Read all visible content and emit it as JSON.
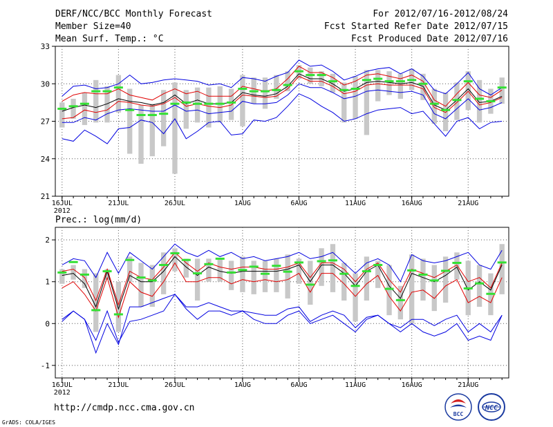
{
  "header": {
    "title": "DERF/NCC/BCC Monthly Forecast",
    "member_size": "Member Size=40",
    "variable_label": "Mean Surf. Temp.: °C",
    "forecast_period": "For 2012/07/16-2012/08/24",
    "start_date": "Fcst Started Refer Date 2012/07/15",
    "produced_date": "Fcst Produced Date 2012/07/16"
  },
  "footer": {
    "url": "http://cmdp.ncc.cma.gov.cn",
    "grads_credit": "GrADS: COLA/IGES",
    "logo_bcc": "BCC",
    "logo_ncc": "NCC"
  },
  "colors": {
    "ensemble_bound": "#0000e0",
    "spread_band": "#e00000",
    "ensemble_mean": "#000000",
    "member_bar": "#c8c8c8",
    "median_mark": "#33e033",
    "logo_red": "#d42020",
    "logo_blue": "#1a3aa0"
  },
  "chart_data": [
    {
      "type": "line",
      "subtitle": "Mean Surf. Temp.: °C",
      "x_ticks": [
        {
          "day": 0,
          "label": "16JUL",
          "sub": "2012"
        },
        {
          "day": 5,
          "label": "21JUL",
          "sub": ""
        },
        {
          "day": 10,
          "label": "26JUL",
          "sub": ""
        },
        {
          "day": 16,
          "label": "1AUG",
          "sub": ""
        },
        {
          "day": 21,
          "label": "6AUG",
          "sub": ""
        },
        {
          "day": 26,
          "label": "11AUG",
          "sub": ""
        },
        {
          "day": 31,
          "label": "16AUG",
          "sub": ""
        },
        {
          "day": 36,
          "label": "21AUG",
          "sub": ""
        }
      ],
      "xlim": [
        -0.6,
        39.6
      ],
      "ylim": [
        21,
        33
      ],
      "y_ticks": [
        21,
        24,
        27,
        30,
        33
      ],
      "x_grid_days": [
        0,
        5,
        10,
        16,
        21,
        26,
        31,
        36
      ],
      "series": [
        {
          "name": "max",
          "color": "#0000e0",
          "values": [
            25.6,
            25.4,
            26.3,
            25.8,
            25.2,
            26.4,
            26.5,
            27.1,
            26.9,
            26.0,
            27.2,
            25.6,
            26.2,
            26.9,
            27.0,
            25.9,
            26.0,
            27.1,
            27.0,
            27.3,
            28.2,
            29.2,
            28.8,
            28.2,
            27.7,
            27.0,
            27.2,
            27.6,
            27.9,
            28.0,
            28.1,
            27.6,
            27.8,
            26.8,
            25.8,
            27.0,
            27.3,
            26.4,
            26.9,
            27.0
          ]
        },
        {
          "name": "upper",
          "color": "#e00000",
          "values": [
            28.6,
            29.1,
            29.3,
            29.2,
            29.2,
            29.6,
            29.1,
            28.9,
            28.7,
            29.2,
            29.6,
            29.2,
            29.4,
            29.0,
            29.0,
            29.0,
            29.8,
            29.6,
            29.4,
            29.6,
            30.4,
            31.4,
            30.9,
            30.9,
            30.5,
            29.9,
            30.2,
            30.7,
            30.8,
            30.6,
            30.4,
            30.7,
            30.2,
            28.7,
            28.2,
            29.2,
            30.1,
            29.1,
            28.9,
            29.5
          ]
        },
        {
          "name": "mean",
          "color": "#000000",
          "values": [
            27.8,
            28.1,
            28.3,
            28.1,
            28.4,
            28.8,
            28.6,
            28.5,
            28.3,
            28.5,
            29.1,
            28.4,
            28.7,
            28.4,
            28.4,
            28.5,
            29.3,
            29.1,
            29.0,
            29.2,
            29.8,
            30.8,
            30.4,
            30.4,
            30.0,
            29.4,
            29.6,
            30.1,
            30.2,
            30.1,
            30.0,
            30.1,
            29.8,
            28.3,
            27.9,
            28.7,
            29.6,
            28.5,
            28.6,
            29.0
          ]
        },
        {
          "name": "lower",
          "color": "#e00000",
          "values": [
            27.2,
            27.3,
            27.9,
            27.7,
            27.9,
            28.6,
            28.5,
            28.3,
            28.2,
            28.4,
            28.9,
            28.2,
            28.4,
            28.2,
            28.1,
            28.3,
            29.1,
            29.0,
            28.9,
            29.0,
            29.6,
            30.6,
            30.2,
            30.2,
            29.8,
            29.2,
            29.4,
            29.9,
            30.0,
            29.9,
            29.9,
            29.9,
            29.6,
            28.1,
            27.7,
            28.5,
            29.4,
            28.3,
            28.5,
            28.9
          ]
        },
        {
          "name": "lowest",
          "color": "#0000e0",
          "values": [
            26.9,
            26.9,
            27.3,
            27.1,
            27.6,
            27.9,
            28.0,
            27.9,
            27.8,
            27.8,
            28.3,
            27.8,
            27.9,
            27.6,
            27.7,
            27.8,
            28.6,
            28.4,
            28.4,
            28.5,
            29.1,
            30.0,
            29.7,
            29.7,
            29.3,
            28.8,
            29.0,
            29.4,
            29.5,
            29.4,
            29.3,
            29.4,
            29.1,
            27.6,
            27.2,
            28.0,
            28.8,
            27.9,
            28.1,
            28.5
          ]
        },
        {
          "name": "min",
          "color": "#0000e0",
          "values": [
            29.0,
            29.8,
            29.9,
            29.6,
            29.7,
            30.0,
            30.7,
            30.0,
            30.1,
            30.3,
            30.4,
            30.3,
            30.2,
            29.9,
            30.0,
            29.7,
            30.5,
            30.4,
            30.2,
            30.6,
            30.9,
            31.9,
            31.4,
            31.5,
            31.0,
            30.3,
            30.6,
            31.0,
            31.2,
            31.3,
            30.8,
            31.2,
            30.6,
            29.5,
            29.2,
            30.0,
            30.9,
            29.6,
            29.1,
            29.7
          ]
        }
      ],
      "bars": {
        "low": [
          26.5,
          27.2,
          26.7,
          26.9,
          26.9,
          27.7,
          24.4,
          23.6,
          24.2,
          25.0,
          22.8,
          26.4,
          26.9,
          26.5,
          26.9,
          27.1,
          26.6,
          28.4,
          28.0,
          28.8,
          29.4,
          30.4,
          30.0,
          29.8,
          29.3,
          26.9,
          27.2,
          25.9,
          28.6,
          29.1,
          28.8,
          29.5,
          28.7,
          26.8,
          26.2,
          27.1,
          27.9,
          26.9,
          27.6,
          28.4
        ],
        "high": [
          28.5,
          28.8,
          29.3,
          30.3,
          29.8,
          30.7,
          29.6,
          28.3,
          28.4,
          29.5,
          30.1,
          29.5,
          29.7,
          29.7,
          29.8,
          29.6,
          30.7,
          30.5,
          30.5,
          30.7,
          31.0,
          31.5,
          31.3,
          31.0,
          30.8,
          30.1,
          30.6,
          31.1,
          31.1,
          31.0,
          30.8,
          31.2,
          30.8,
          29.6,
          29.3,
          30.1,
          31.0,
          30.3,
          29.6,
          30.5
        ]
      },
      "median": [
        28.0,
        28.2,
        28.4,
        29.4,
        29.4,
        29.7,
        27.9,
        27.5,
        27.5,
        27.6,
        28.4,
        28.5,
        28.4,
        28.4,
        28.4,
        28.5,
        29.6,
        29.4,
        29.4,
        29.5,
        29.9,
        31.0,
        30.7,
        30.7,
        30.2,
        29.5,
        29.6,
        30.3,
        30.4,
        30.2,
        30.2,
        30.3,
        30.0,
        28.4,
        27.9,
        28.7,
        30.2,
        28.8,
        28.6,
        29.7
      ]
    },
    {
      "type": "line",
      "subtitle": "Prec.: log(mm/d)",
      "x_ticks": [
        {
          "day": 0,
          "label": "16JUL",
          "sub": "2012"
        },
        {
          "day": 5,
          "label": "21JUL",
          "sub": ""
        },
        {
          "day": 10,
          "label": "26JUL",
          "sub": ""
        },
        {
          "day": 16,
          "label": "1AUG",
          "sub": ""
        },
        {
          "day": 21,
          "label": "6AUG",
          "sub": ""
        },
        {
          "day": 26,
          "label": "11AUG",
          "sub": ""
        },
        {
          "day": 31,
          "label": "16AUG",
          "sub": ""
        },
        {
          "day": 36,
          "label": "21AUG",
          "sub": ""
        }
      ],
      "xlim": [
        -0.6,
        39.6
      ],
      "ylim": [
        -1.3,
        2.3
      ],
      "y_ticks": [
        -1,
        0,
        1,
        2
      ],
      "x_grid_days": [
        0,
        5,
        10,
        16,
        21,
        26,
        31,
        36
      ],
      "series": [
        {
          "name": "max",
          "color": "#0000e0",
          "values": [
            1.4,
            1.55,
            1.5,
            1.1,
            1.7,
            1.2,
            1.7,
            1.5,
            1.3,
            1.6,
            1.9,
            1.7,
            1.6,
            1.75,
            1.6,
            1.7,
            1.55,
            1.6,
            1.5,
            1.55,
            1.6,
            1.7,
            1.55,
            1.6,
            1.7,
            1.45,
            1.2,
            1.45,
            1.55,
            1.4,
            1.0,
            1.65,
            1.5,
            1.45,
            1.5,
            1.6,
            1.7,
            1.4,
            1.3,
            1.75
          ]
        },
        {
          "name": "upper",
          "color": "#e00000",
          "values": [
            1.25,
            1.3,
            1.1,
            0.55,
            1.3,
            0.45,
            1.25,
            1.1,
            1.05,
            1.35,
            1.7,
            1.45,
            1.25,
            1.45,
            1.35,
            1.3,
            1.35,
            1.35,
            1.3,
            1.3,
            1.35,
            1.45,
            1.1,
            1.45,
            1.45,
            1.3,
            1.0,
            1.3,
            1.45,
            1.05,
            0.75,
            1.3,
            1.2,
            1.1,
            1.25,
            1.4,
            1.0,
            1.1,
            0.85,
            1.45
          ]
        },
        {
          "name": "mean",
          "color": "#000000",
          "values": [
            1.15,
            1.2,
            0.95,
            0.4,
            1.25,
            0.35,
            1.15,
            1.0,
            1.0,
            1.25,
            1.6,
            1.35,
            1.15,
            1.35,
            1.25,
            1.2,
            1.25,
            1.25,
            1.25,
            1.25,
            1.3,
            1.4,
            1.0,
            1.4,
            1.4,
            1.2,
            0.9,
            1.25,
            1.4,
            0.9,
            0.6,
            1.2,
            1.1,
            1.0,
            1.15,
            1.35,
            0.8,
            1.0,
            0.8,
            1.4
          ]
        },
        {
          "name": "lower",
          "color": "#e00000",
          "values": [
            0.85,
            1.0,
            0.7,
            0.3,
            1.1,
            0.15,
            1.0,
            0.75,
            0.65,
            1.0,
            1.45,
            1.0,
            1.0,
            1.1,
            1.1,
            0.95,
            1.05,
            1.0,
            1.05,
            1.0,
            1.05,
            1.2,
            0.75,
            1.2,
            1.2,
            0.95,
            0.65,
            0.95,
            1.15,
            0.65,
            0.3,
            0.75,
            0.8,
            0.6,
            0.9,
            1.05,
            0.5,
            0.65,
            0.5,
            1.1
          ]
        },
        {
          "name": "lowest",
          "color": "#0000e0",
          "values": [
            0.05,
            0.3,
            0.1,
            -0.4,
            0.3,
            -0.45,
            0.05,
            0.1,
            0.2,
            0.3,
            0.7,
            0.35,
            0.1,
            0.3,
            0.3,
            0.2,
            0.3,
            0.25,
            0.2,
            0.2,
            0.35,
            0.4,
            0.05,
            0.2,
            0.3,
            0.2,
            -0.1,
            0.15,
            0.2,
            0.0,
            -0.1,
            0.1,
            0.1,
            -0.05,
            0.1,
            0.2,
            -0.2,
            0.0,
            -0.2,
            0.2
          ]
        },
        {
          "name": "min",
          "color": "#0000e0",
          "values": [
            0.1,
            0.3,
            0.1,
            -0.7,
            0.0,
            -0.5,
            0.4,
            0.4,
            0.5,
            0.6,
            0.7,
            0.4,
            0.4,
            0.5,
            0.4,
            0.3,
            0.3,
            0.1,
            0.0,
            0.0,
            0.2,
            0.3,
            0.0,
            0.1,
            0.2,
            0.0,
            -0.2,
            0.1,
            0.2,
            0.0,
            -0.2,
            0.0,
            -0.2,
            -0.3,
            -0.2,
            0.0,
            -0.4,
            -0.3,
            -0.4,
            0.2
          ]
        }
      ],
      "bars": {
        "low": [
          0.95,
          1.05,
          0.85,
          -0.2,
          1.05,
          -0.2,
          1.0,
          0.4,
          0.4,
          0.7,
          1.25,
          1.1,
          0.55,
          1.0,
          1.0,
          0.8,
          0.75,
          0.7,
          0.75,
          0.75,
          0.6,
          0.95,
          0.45,
          0.9,
          0.75,
          0.55,
          0.05,
          0.55,
          0.85,
          0.2,
          0.1,
          0.0,
          0.55,
          0.3,
          0.5,
          1.05,
          0.2,
          0.4,
          0.2,
          0.7
        ],
        "high": [
          1.3,
          1.4,
          1.3,
          1.2,
          1.3,
          1.0,
          1.6,
          1.45,
          1.4,
          1.7,
          1.8,
          1.55,
          1.55,
          1.55,
          1.55,
          1.5,
          1.6,
          1.5,
          1.5,
          1.55,
          1.65,
          1.55,
          1.5,
          1.8,
          1.9,
          1.45,
          1.2,
          1.6,
          1.5,
          1.4,
          0.9,
          1.65,
          1.55,
          1.4,
          1.6,
          1.7,
          1.5,
          1.4,
          1.2,
          1.9
        ]
      },
      "median": [
        1.22,
        1.47,
        1.17,
        0.32,
        1.25,
        0.22,
        1.52,
        1.1,
        1.03,
        1.4,
        1.68,
        1.52,
        1.2,
        1.42,
        1.55,
        1.22,
        1.28,
        1.36,
        1.19,
        1.38,
        1.24,
        1.46,
        0.93,
        1.49,
        1.51,
        1.19,
        0.9,
        1.25,
        1.4,
        0.83,
        0.56,
        1.27,
        1.17,
        1.03,
        1.26,
        1.45,
        0.84,
        0.96,
        0.71,
        1.46
      ]
    }
  ]
}
